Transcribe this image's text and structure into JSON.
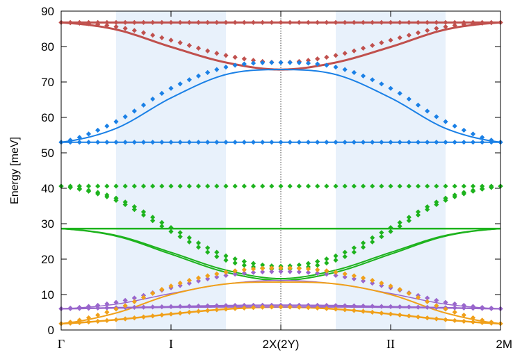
{
  "chart_data": {
    "type": "line",
    "title": "",
    "xlabel": "",
    "ylabel": "Energy [meV]",
    "ylim": [
      0,
      90
    ],
    "yticks": [
      0,
      10,
      20,
      30,
      40,
      50,
      60,
      70,
      80,
      90
    ],
    "xlim": [
      0,
      4
    ],
    "xticks": [
      {
        "x": 0,
        "label": "Γ"
      },
      {
        "x": 1,
        "label": "I"
      },
      {
        "x": 2,
        "label": "2X(2Y)"
      },
      {
        "x": 3,
        "label": "II"
      },
      {
        "x": 4,
        "label": "2M"
      }
    ],
    "shaded_regions": [
      [
        0.5,
        1.5
      ],
      [
        2.5,
        3.5
      ]
    ],
    "divider_x": 2,
    "colors": {
      "red": "#c0504d",
      "blue": "#1a80e6",
      "green": "#1db31d",
      "purple": "#9966cc",
      "orange": "#f0a01a",
      "shade": "#e8f1fb"
    },
    "curves": [
      {
        "color": "red",
        "width": 3,
        "values": [
          86.8,
          86.8,
          86.8,
          86.8,
          86.8,
          86.8,
          86.8,
          86.8,
          86.8
        ]
      },
      {
        "color": "red",
        "width": 3,
        "values": [
          86.8,
          84.8,
          79.9,
          75.5,
          73.5,
          75.5,
          79.9,
          84.8,
          86.8
        ]
      },
      {
        "color": "blue",
        "width": 2,
        "values": [
          53.0,
          56.9,
          65.5,
          72.1,
          73.5,
          72.1,
          65.5,
          56.9,
          53.0
        ]
      },
      {
        "color": "blue",
        "width": 2,
        "values": [
          53.0,
          53.0,
          53.0,
          53.0,
          53.0,
          53.0,
          53.0,
          53.0,
          53.0
        ]
      },
      {
        "color": "green",
        "width": 2.5,
        "values": [
          28.6,
          28.6,
          28.6,
          28.6,
          28.6,
          28.6,
          28.6,
          28.6,
          28.6
        ]
      },
      {
        "color": "green",
        "width": 2,
        "values": [
          28.6,
          26.7,
          21.9,
          16.9,
          14.5,
          16.9,
          21.9,
          26.7,
          28.6
        ]
      },
      {
        "color": "green",
        "width": 2,
        "values": [
          28.6,
          26.5,
          21.4,
          16.3,
          14.0,
          16.3,
          21.4,
          26.5,
          28.6
        ]
      },
      {
        "color": "purple",
        "width": 2,
        "values": [
          6.0,
          6.3,
          6.6,
          6.9,
          7.0,
          6.9,
          6.6,
          6.3,
          6.0
        ]
      },
      {
        "color": "purple",
        "width": 1.5,
        "values": [
          6.0,
          7.3,
          10.3,
          13.0,
          14.0,
          13.0,
          10.3,
          7.3,
          6.0
        ]
      },
      {
        "color": "orange",
        "width": 2,
        "values": [
          1.8,
          4.8,
          10.0,
          13.0,
          13.5,
          13.0,
          10.0,
          4.8,
          1.8
        ]
      },
      {
        "color": "orange",
        "width": 2.5,
        "values": [
          1.8,
          2.9,
          4.5,
          5.9,
          6.5,
          5.9,
          4.5,
          2.9,
          1.8
        ]
      },
      {
        "color": "purple",
        "width": 2,
        "values": [
          6.0,
          6.2,
          6.4,
          6.5,
          6.5,
          6.5,
          6.4,
          6.2,
          6.0
        ]
      }
    ],
    "marker_series": [
      {
        "color": "red",
        "values": [
          86.8,
          86.8,
          86.8,
          86.8,
          86.8,
          86.8,
          86.8,
          86.8,
          86.8
        ]
      },
      {
        "color": "red",
        "values": [
          86.8,
          85.6,
          81.8,
          77.5,
          75.5,
          77.5,
          81.8,
          85.6,
          86.8
        ]
      },
      {
        "color": "blue",
        "values": [
          53.0,
          58.8,
          68.2,
          74.2,
          75.5,
          74.2,
          68.2,
          58.8,
          53.0
        ]
      },
      {
        "color": "blue",
        "values": [
          53.0,
          53.0,
          53.0,
          53.0,
          53.0,
          53.0,
          53.0,
          53.0,
          53.0
        ]
      },
      {
        "color": "green",
        "values": [
          40.6,
          40.6,
          40.6,
          40.6,
          40.6,
          40.6,
          40.6,
          40.6,
          40.6
        ]
      },
      {
        "color": "green",
        "values": [
          40.6,
          37.2,
          28.9,
          20.9,
          18.0,
          20.9,
          28.9,
          37.2,
          40.6
        ]
      },
      {
        "color": "green",
        "values": [
          40.6,
          36.6,
          27.8,
          19.7,
          17.2,
          19.7,
          27.8,
          36.6,
          40.6
        ]
      },
      {
        "color": "purple",
        "values": [
          6.0,
          6.3,
          6.6,
          6.9,
          7.0,
          6.9,
          6.6,
          6.3,
          6.0
        ]
      },
      {
        "color": "purple",
        "values": [
          6.0,
          7.8,
          11.9,
          15.4,
          16.5,
          15.4,
          11.9,
          7.8,
          6.0
        ]
      },
      {
        "color": "orange",
        "values": [
          1.8,
          5.9,
          12.4,
          16.3,
          17.5,
          16.3,
          12.4,
          5.9,
          1.8
        ]
      },
      {
        "color": "orange",
        "values": [
          1.8,
          2.9,
          4.5,
          5.9,
          6.5,
          5.9,
          4.5,
          2.9,
          1.8
        ]
      }
    ]
  }
}
